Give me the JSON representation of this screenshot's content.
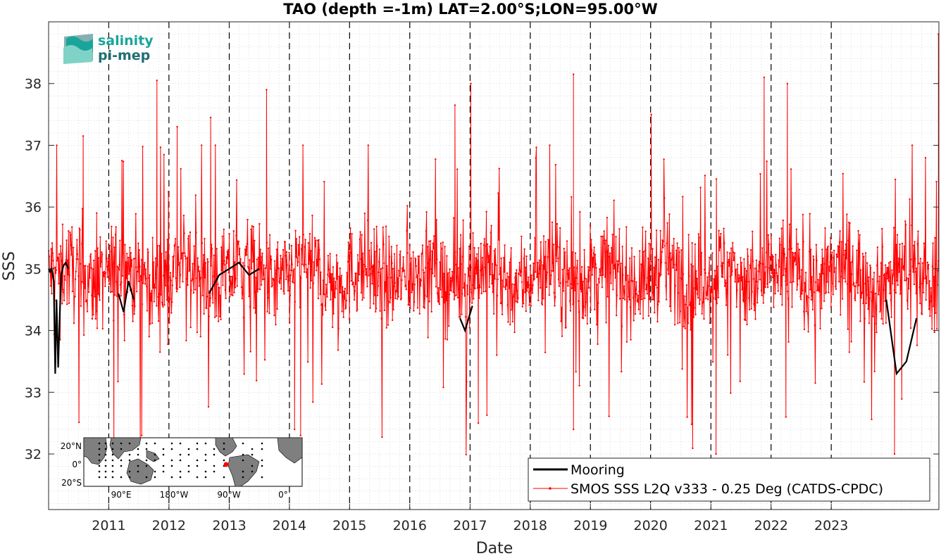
{
  "logo": {
    "line1": "salinity",
    "line2": "pi-mep",
    "color1": "#1aa59a",
    "color2": "#1f6f73"
  },
  "chart_data": {
    "type": "line",
    "title": "TAO (depth =-1m) LAT=2.00°S;LON=95.00°W",
    "xlabel": "Date",
    "ylabel": "SSS",
    "xlim": [
      "2010-01-01",
      "2024-10-15"
    ],
    "ylim": [
      31.1,
      39.0
    ],
    "grid": true,
    "yticks": [
      32,
      33,
      34,
      35,
      36,
      37,
      38
    ],
    "xticks": [
      "2011",
      "2012",
      "2013",
      "2014",
      "2015",
      "2016",
      "2017",
      "2018",
      "2019",
      "2020",
      "2021",
      "2022",
      "2023"
    ],
    "vertical_dashed_lines": [
      "2011-01-01",
      "2012-01-01",
      "2013-01-01",
      "2014-01-01",
      "2015-01-01",
      "2016-01-01",
      "2017-01-01",
      "2018-01-01",
      "2019-01-01",
      "2020-01-01",
      "2021-01-01",
      "2022-01-01",
      "2023-01-01"
    ],
    "legend_location": "bottom-right",
    "series": [
      {
        "name": "Mooring",
        "color": "#000000",
        "style": "solid-thick",
        "points": [
          [
            "2010-01-01",
            35.0
          ],
          [
            "2010-01-10",
            34.95
          ],
          [
            "2010-01-20",
            35.0
          ],
          [
            "2010-02-01",
            34.8
          ],
          [
            "2010-02-10",
            33.3
          ],
          [
            "2010-02-18",
            34.5
          ],
          [
            "2010-02-28",
            33.4
          ],
          [
            "2010-03-08",
            34.1
          ],
          [
            "2010-03-18",
            34.9
          ],
          [
            "2010-04-01",
            35.05
          ],
          [
            "2010-04-15",
            35.1
          ],
          [
            "2010-05-01",
            35.0
          ],
          [
            "2011-03-01",
            34.6
          ],
          [
            "2011-04-01",
            34.3
          ],
          [
            "2011-05-01",
            34.8
          ],
          [
            "2011-06-01",
            34.5
          ],
          [
            "2012-09-01",
            34.6
          ],
          [
            "2012-11-01",
            34.9
          ],
          [
            "2013-01-01",
            35.0
          ],
          [
            "2013-03-01",
            35.1
          ],
          [
            "2013-05-01",
            34.9
          ],
          [
            "2013-07-01",
            35.0
          ],
          [
            "2016-11-01",
            34.2
          ],
          [
            "2016-12-01",
            34.0
          ],
          [
            "2017-01-15",
            34.4
          ],
          [
            "2023-06-01",
            34.7
          ],
          [
            "2023-09-01",
            34.9
          ],
          [
            "2023-12-01",
            34.5
          ],
          [
            "2024-02-01",
            33.3
          ],
          [
            "2024-04-01",
            33.5
          ],
          [
            "2024-06-01",
            34.2
          ]
        ]
      },
      {
        "name": "SMOS SSS L2Q v333 - 0.25 Deg (CATDS-CPDC)",
        "color": "#ff0000",
        "style": "thin-line-with-dots",
        "mean": 34.9,
        "spread": 0.55,
        "spike_max": [
          [
            "2010-07-30",
            37.15
          ],
          [
            "2011-10-20",
            38.05
          ],
          [
            "2012-02-20",
            37.3
          ],
          [
            "2012-09-10",
            37.45
          ],
          [
            "2013-08-15",
            37.9
          ],
          [
            "2016-10-01",
            37.65
          ],
          [
            "2017-01-05",
            38.0
          ],
          [
            "2018-09-20",
            38.15
          ],
          [
            "2020-01-05",
            37.5
          ],
          [
            "2021-11-20",
            38.1
          ],
          [
            "2022-04-10",
            38.0
          ],
          [
            "2024-10-12",
            38.8
          ]
        ],
        "spike_min": [
          [
            "2011-02-01",
            32.15
          ],
          [
            "2011-07-20",
            32.3
          ],
          [
            "2014-02-01",
            32.4
          ],
          [
            "2014-03-10",
            32.3
          ],
          [
            "2017-02-20",
            32.5
          ],
          [
            "2021-02-01",
            32.0
          ],
          [
            "2022-04-01",
            32.6
          ],
          [
            "2024-01-20",
            32.0
          ],
          [
            "2018-09-20",
            32.4
          ]
        ]
      }
    ],
    "inset_map": {
      "lat_ticks": [
        "20°N",
        "0°",
        "20°S"
      ],
      "lon_ticks": [
        "90°E",
        "180°W",
        "90°W",
        "0°"
      ],
      "marker_color": "#ff0000"
    }
  }
}
